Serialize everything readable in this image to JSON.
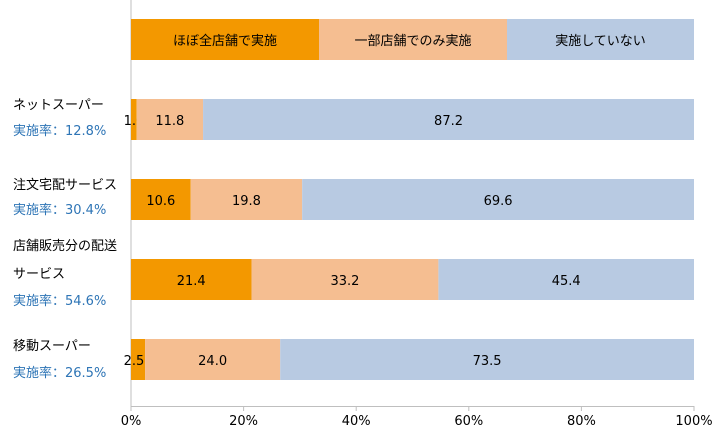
{
  "chart_data": {
    "type": "bar",
    "stacked": true,
    "orientation": "horizontal",
    "legend": {
      "placement": "top",
      "items": [
        "ほぼ全店舗で実施",
        "一部店舗でのみ実施",
        "実施していない"
      ]
    },
    "categories": [
      {
        "label_lines": [
          "ネットスーパー"
        ],
        "rate": "実施率：12.8%"
      },
      {
        "label_lines": [
          "注文宅配サービス"
        ],
        "rate": "実施率：30.4%"
      },
      {
        "label_lines": [
          "店舗販売分の配送",
          "サービス"
        ],
        "rate": "実施率：54.6%"
      },
      {
        "label_lines": [
          "移動スーパー"
        ],
        "rate": "実施率：26.5%"
      }
    ],
    "series": [
      {
        "name": "ほぼ全店舗で実施",
        "color": "#F39800",
        "values": [
          1.0,
          10.6,
          21.4,
          2.5
        ]
      },
      {
        "name": "一部店舗でのみ実施",
        "color": "#F5BE91",
        "values": [
          11.8,
          19.8,
          33.2,
          24.0
        ]
      },
      {
        "name": "実施していない",
        "color": "#B8CAE2",
        "values": [
          87.2,
          69.6,
          45.4,
          73.5
        ]
      }
    ],
    "x_ticks": [
      "0%",
      "20%",
      "40%",
      "60%",
      "80%",
      "100%"
    ],
    "xlim": [
      0,
      100
    ],
    "grid": false,
    "rate_color": "#2E75B6"
  }
}
